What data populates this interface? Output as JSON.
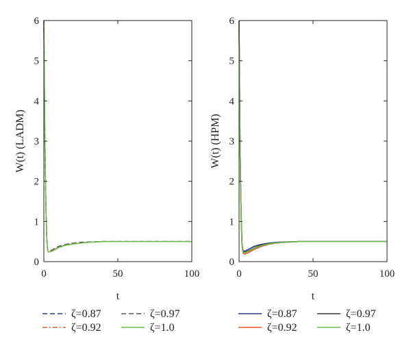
{
  "chart_data": [
    {
      "type": "line",
      "xlabel": "t",
      "ylabel": "W(t) (LADM)",
      "xlim": [
        0,
        100
      ],
      "ylim": [
        0,
        6
      ],
      "xticks": [
        "0",
        "50",
        "100"
      ],
      "yticks": [
        "0",
        "1",
        "2",
        "3",
        "4",
        "5",
        "6"
      ],
      "grid": false,
      "legend_placement": "bottom",
      "series": [
        {
          "name": "ζ=0.87",
          "color": "#2b3a8c",
          "dash": "dashed",
          "x": [
            0,
            0.3,
            0.6,
            1,
            1.5,
            2,
            2.5,
            3,
            4,
            6,
            8,
            10,
            15,
            20,
            25,
            30,
            40,
            50,
            60,
            80,
            100
          ],
          "y": [
            6,
            4.6,
            3.4,
            2.2,
            1.2,
            0.55,
            0.3,
            0.25,
            0.26,
            0.3,
            0.34,
            0.38,
            0.43,
            0.46,
            0.48,
            0.49,
            0.5,
            0.5,
            0.5,
            0.5,
            0.5
          ]
        },
        {
          "name": "ζ=0.97",
          "color": "#555555",
          "dash": "dashed",
          "x": [
            0,
            0.3,
            0.6,
            1,
            1.5,
            2,
            2.5,
            3,
            4,
            6,
            8,
            10,
            15,
            20,
            25,
            30,
            40,
            50,
            60,
            80,
            100
          ],
          "y": [
            6,
            4.6,
            3.4,
            2.2,
            1.2,
            0.55,
            0.3,
            0.25,
            0.26,
            0.29,
            0.33,
            0.37,
            0.42,
            0.45,
            0.47,
            0.48,
            0.5,
            0.5,
            0.5,
            0.5,
            0.5
          ]
        },
        {
          "name": "ζ=0.92",
          "color": "#d9602a",
          "dash": "dashdot",
          "x": [
            0,
            0.3,
            0.6,
            1,
            1.5,
            2,
            2.5,
            3,
            4,
            6,
            8,
            10,
            15,
            20,
            25,
            30,
            40,
            50,
            60,
            80,
            100
          ],
          "y": [
            6,
            4.6,
            3.4,
            2.2,
            1.2,
            0.55,
            0.3,
            0.25,
            0.25,
            0.28,
            0.32,
            0.36,
            0.42,
            0.45,
            0.47,
            0.48,
            0.5,
            0.5,
            0.5,
            0.5,
            0.5
          ]
        },
        {
          "name": "ζ=1.0",
          "color": "#6cbf4e",
          "dash": "solid",
          "x": [
            0,
            0.3,
            0.6,
            1,
            1.5,
            2,
            2.5,
            3,
            4,
            6,
            8,
            10,
            15,
            20,
            25,
            30,
            40,
            50,
            60,
            80,
            100
          ],
          "y": [
            6,
            4.6,
            3.4,
            2.2,
            1.2,
            0.55,
            0.3,
            0.24,
            0.24,
            0.27,
            0.31,
            0.35,
            0.41,
            0.44,
            0.46,
            0.48,
            0.5,
            0.5,
            0.5,
            0.5,
            0.5
          ]
        }
      ]
    },
    {
      "type": "line",
      "xlabel": "t",
      "ylabel": "W(t) (HPM)",
      "xlim": [
        0,
        100
      ],
      "ylim": [
        0,
        6
      ],
      "xticks": [
        "0",
        "50",
        "100"
      ],
      "yticks": [
        "0",
        "1",
        "2",
        "3",
        "4",
        "5",
        "6"
      ],
      "grid": false,
      "legend_placement": "bottom",
      "series": [
        {
          "name": "ζ=0.87",
          "color": "#2b3a8c",
          "dash": "solid",
          "x": [
            0,
            0.3,
            0.6,
            1,
            1.5,
            2,
            2.5,
            3,
            4,
            6,
            8,
            10,
            15,
            20,
            25,
            30,
            40,
            50,
            60,
            80,
            100
          ],
          "y": [
            6,
            4.5,
            3.2,
            2.0,
            1.0,
            0.45,
            0.3,
            0.27,
            0.26,
            0.3,
            0.34,
            0.38,
            0.43,
            0.46,
            0.48,
            0.49,
            0.5,
            0.5,
            0.5,
            0.5,
            0.5
          ]
        },
        {
          "name": "ζ=0.97",
          "color": "#333333",
          "dash": "solid",
          "x": [
            0,
            0.3,
            0.6,
            1,
            1.5,
            2,
            2.5,
            3,
            4,
            6,
            8,
            10,
            15,
            20,
            25,
            30,
            40,
            50,
            60,
            80,
            100
          ],
          "y": [
            6,
            4.5,
            3.2,
            2.0,
            1.0,
            0.43,
            0.28,
            0.24,
            0.23,
            0.26,
            0.3,
            0.34,
            0.41,
            0.45,
            0.47,
            0.48,
            0.5,
            0.5,
            0.5,
            0.5,
            0.5
          ]
        },
        {
          "name": "ζ=0.92",
          "color": "#e05a1f",
          "dash": "solid",
          "x": [
            0,
            0.3,
            0.6,
            1,
            1.5,
            2,
            2.5,
            3,
            4,
            6,
            8,
            10,
            15,
            20,
            25,
            30,
            40,
            50,
            60,
            80,
            100
          ],
          "y": [
            6,
            4.5,
            3.2,
            2.0,
            1.0,
            0.4,
            0.25,
            0.2,
            0.19,
            0.22,
            0.26,
            0.3,
            0.38,
            0.43,
            0.46,
            0.48,
            0.5,
            0.5,
            0.5,
            0.5,
            0.5
          ]
        },
        {
          "name": "ζ=1.0",
          "color": "#6cbf4e",
          "dash": "solid",
          "x": [
            0,
            0.3,
            0.6,
            1,
            1.5,
            2,
            2.5,
            3,
            4,
            6,
            8,
            10,
            15,
            20,
            25,
            30,
            40,
            50,
            60,
            80,
            100
          ],
          "y": [
            6,
            4.5,
            3.2,
            2.0,
            1.0,
            0.42,
            0.27,
            0.23,
            0.22,
            0.25,
            0.29,
            0.33,
            0.4,
            0.44,
            0.47,
            0.48,
            0.5,
            0.5,
            0.5,
            0.5,
            0.5
          ]
        }
      ]
    }
  ],
  "legends": [
    {
      "columns": [
        [
          "ζ=0.87",
          "ζ=0.92"
        ],
        [
          "ζ=0.97",
          "ζ=1.0"
        ]
      ]
    },
    {
      "columns": [
        [
          "ζ=0.87",
          "ζ=0.92"
        ],
        [
          "ζ=0.97",
          "ζ=1.0"
        ]
      ]
    }
  ]
}
